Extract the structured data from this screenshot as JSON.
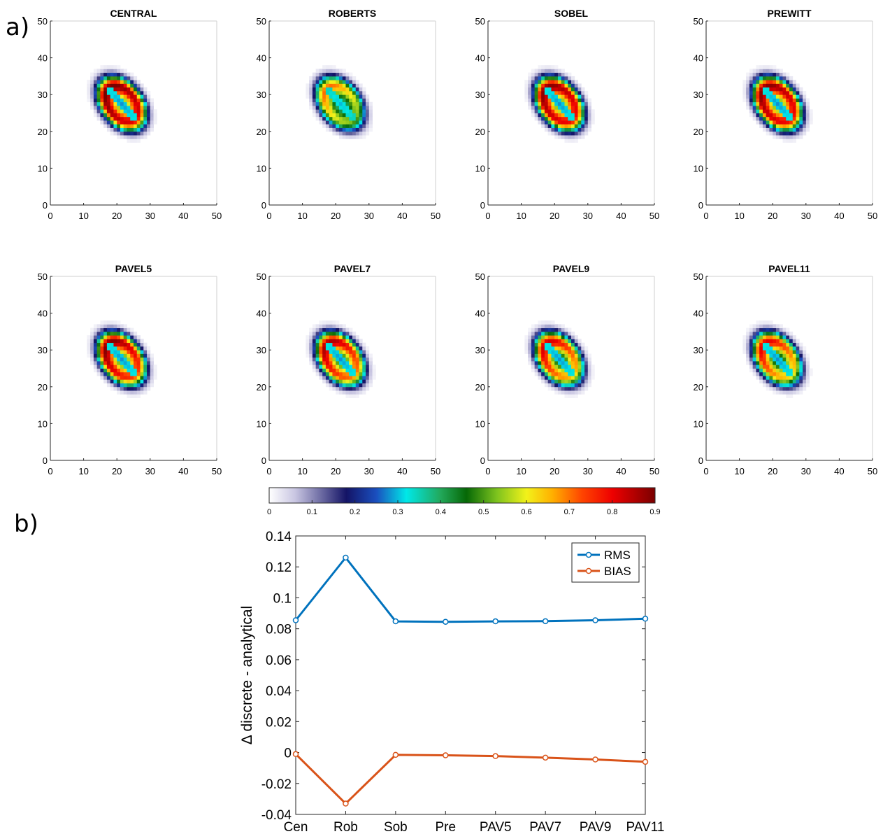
{
  "panel_labels": {
    "a": "a)",
    "b": "b)"
  },
  "chart_data": [
    {
      "type": "heatmap",
      "grid": {
        "xlim": [
          0,
          50
        ],
        "ylim": [
          0,
          50
        ],
        "xticks": [
          0,
          10,
          20,
          30,
          40,
          50
        ],
        "yticks": [
          0,
          10,
          20,
          30,
          40,
          50
        ]
      },
      "panels": [
        {
          "title": "CENTRAL",
          "peak": 0.86,
          "asym": 0.1,
          "inner": 0.28
        },
        {
          "title": "ROBERTS",
          "peak": 0.62,
          "asym": 0.25,
          "inner": 0.3
        },
        {
          "title": "SOBEL",
          "peak": 0.84,
          "asym": 0.1,
          "inner": 0.28
        },
        {
          "title": "PREWITT",
          "peak": 0.84,
          "asym": 0.1,
          "inner": 0.28
        },
        {
          "title": "PAVEL5",
          "peak": 0.82,
          "asym": 0.16,
          "inner": 0.28
        },
        {
          "title": "PAVEL7",
          "peak": 0.78,
          "asym": 0.18,
          "inner": 0.28
        },
        {
          "title": "PAVEL9",
          "peak": 0.74,
          "asym": 0.2,
          "inner": 0.28
        },
        {
          "title": "PAVEL11",
          "peak": 0.72,
          "asym": 0.22,
          "inner": 0.28
        }
      ],
      "colorbar": {
        "range": [
          0,
          0.9
        ],
        "ticks": [
          "0",
          "0.1",
          "0.2",
          "0.3",
          "0.4",
          "0.5",
          "0.6",
          "0.7",
          "0.8",
          "0.9"
        ],
        "colormap_stops": [
          [
            0.0,
            "#ffffff"
          ],
          [
            0.06,
            "#c9c6e2"
          ],
          [
            0.18,
            "#141466"
          ],
          [
            0.25,
            "#1a4fbf"
          ],
          [
            0.32,
            "#00e8e8"
          ],
          [
            0.4,
            "#22a85a"
          ],
          [
            0.46,
            "#066806"
          ],
          [
            0.53,
            "#7cc21e"
          ],
          [
            0.6,
            "#f2f21a"
          ],
          [
            0.66,
            "#ffb000"
          ],
          [
            0.73,
            "#ff4400"
          ],
          [
            0.8,
            "#ee0000"
          ],
          [
            0.9,
            "#7a0000"
          ]
        ]
      }
    },
    {
      "type": "line",
      "categories": [
        "Cen",
        "Rob",
        "Sob",
        "Pre",
        "PAV5",
        "PAV7",
        "PAV9",
        "PAV11"
      ],
      "series": [
        {
          "name": "RMS",
          "color": "#0072bd",
          "values": [
            0.0855,
            0.126,
            0.0848,
            0.0845,
            0.0848,
            0.0849,
            0.0855,
            0.0865
          ]
        },
        {
          "name": "BIAS",
          "color": "#d95319",
          "values": [
            -0.001,
            -0.033,
            -0.0015,
            -0.0018,
            -0.0023,
            -0.0033,
            -0.0045,
            -0.006
          ]
        }
      ],
      "ylabel": "Δ discrete - analytical",
      "ylim": [
        -0.04,
        0.14
      ],
      "yticks": [
        "-0.04",
        "-0.02",
        "0",
        "0.02",
        "0.04",
        "0.06",
        "0.08",
        "0.1",
        "0.12",
        "0.14"
      ],
      "legend": "top-right"
    }
  ]
}
